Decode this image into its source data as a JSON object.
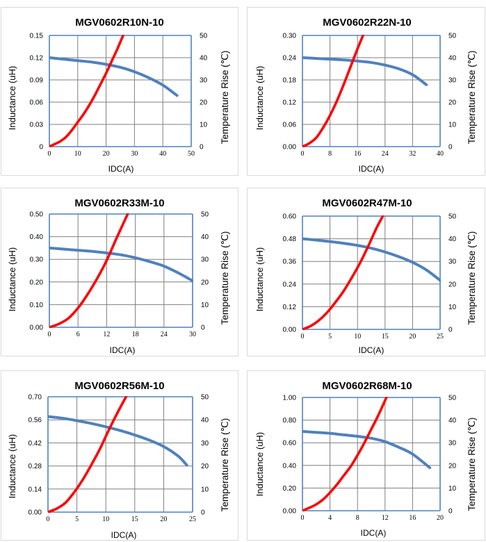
{
  "colors": {
    "inductance": "#4f81bd",
    "temperature": "#ff0000",
    "grid": "#7f7f7f",
    "axis": "#4f81bd",
    "panel_border": "#d9d9d9"
  },
  "common": {
    "xlabel": "IDC(A)",
    "ylabel_left": "Inductance (uH)",
    "ylabel_right": "Temperature Rise (℃)"
  },
  "chart_data": [
    {
      "type": "line",
      "title": "MGV0602R10N-10",
      "xlabel": "IDC(A)",
      "ylabel": "Inductance (uH)",
      "ylabel_right": "Temperature Rise (℃)",
      "xlim": [
        0,
        50
      ],
      "ylim": [
        0,
        0.15
      ],
      "ylim_right": [
        0,
        50
      ],
      "x_ticks": [
        "0",
        "10",
        "20",
        "30",
        "40",
        "50"
      ],
      "y_ticks": [
        "0",
        "0.03",
        "0.06",
        "0.09",
        "0.12",
        "0.15"
      ],
      "y_ticks_right": [
        "0",
        "10",
        "20",
        "30",
        "40",
        "50"
      ],
      "series": [
        {
          "name": "Inductance",
          "axis": "left",
          "x": [
            0,
            5,
            10,
            15,
            20,
            25,
            30,
            35,
            40,
            45
          ],
          "values": [
            0.12,
            0.118,
            0.116,
            0.114,
            0.111,
            0.107,
            0.101,
            0.093,
            0.083,
            0.069
          ]
        },
        {
          "name": "Temperature Rise",
          "axis": "right",
          "x": [
            0,
            2,
            4,
            6,
            8,
            10,
            12,
            14,
            16,
            18,
            20,
            22,
            24,
            26
          ],
          "values": [
            0,
            1.2,
            2.5,
            4.5,
            7.5,
            11,
            14.5,
            18.5,
            23,
            28,
            33,
            38.5,
            44,
            50
          ]
        }
      ]
    },
    {
      "type": "line",
      "title": "MGV0602R22N-10",
      "xlabel": "IDC(A)",
      "ylabel": "Inductance (uH)",
      "ylabel_right": "Temperature Rise (℃)",
      "xlim": [
        0,
        40
      ],
      "ylim": [
        0,
        0.3
      ],
      "ylim_right": [
        0,
        50
      ],
      "x_ticks": [
        "0",
        "8",
        "16",
        "24",
        "32",
        "40"
      ],
      "y_ticks": [
        "0.00",
        "0.06",
        "0.12",
        "0.18",
        "0.24",
        "0.30"
      ],
      "y_ticks_right": [
        "0",
        "10",
        "20",
        "30",
        "40",
        "50"
      ],
      "series": [
        {
          "name": "Inductance",
          "axis": "left",
          "x": [
            0,
            4,
            8,
            12,
            16,
            20,
            24,
            28,
            32,
            36
          ],
          "values": [
            0.24,
            0.238,
            0.236,
            0.234,
            0.231,
            0.227,
            0.22,
            0.21,
            0.194,
            0.167
          ]
        },
        {
          "name": "Temperature Rise",
          "axis": "right",
          "x": [
            0,
            2,
            4,
            6,
            8,
            10,
            12,
            14,
            16,
            17.6
          ],
          "values": [
            0,
            1.5,
            4,
            8.5,
            14,
            20.5,
            28,
            36,
            44,
            50
          ]
        }
      ]
    },
    {
      "type": "line",
      "title": "MGV0602R33M-10",
      "xlabel": "IDC(A)",
      "ylabel": "Inductance (uH)",
      "ylabel_right": "Temperature Rise (℃)",
      "xlim": [
        0,
        30
      ],
      "ylim": [
        0,
        0.5
      ],
      "ylim_right": [
        0,
        50
      ],
      "x_ticks": [
        "0",
        "6",
        "12",
        "18",
        "24",
        "30"
      ],
      "y_ticks": [
        "0.00",
        "0.10",
        "0.20",
        "0.30",
        "0.40",
        "0.50"
      ],
      "y_ticks_right": [
        "0",
        "10",
        "20",
        "30",
        "40",
        "50"
      ],
      "series": [
        {
          "name": "Inductance",
          "axis": "left",
          "x": [
            0,
            3,
            6,
            9,
            12,
            15,
            18,
            21,
            24,
            27,
            30
          ],
          "values": [
            0.35,
            0.345,
            0.34,
            0.335,
            0.328,
            0.32,
            0.307,
            0.29,
            0.27,
            0.24,
            0.205
          ]
        },
        {
          "name": "Temperature Rise",
          "axis": "right",
          "x": [
            0,
            2,
            4,
            6,
            8,
            10,
            12,
            14,
            16.4
          ],
          "values": [
            0,
            1.5,
            4,
            8.5,
            14.5,
            21.5,
            29.5,
            39,
            50
          ]
        }
      ]
    },
    {
      "type": "line",
      "title": "MGV0602R47M-10",
      "xlabel": "IDC(A)",
      "ylabel": "Inductance (uH)",
      "ylabel_right": "Temperature Rise (℃)",
      "xlim": [
        0,
        25
      ],
      "ylim": [
        0,
        0.6
      ],
      "ylim_right": [
        0,
        50
      ],
      "x_ticks": [
        "0",
        "5",
        "10",
        "15",
        "20",
        "25"
      ],
      "y_ticks": [
        "0.00",
        "0.12",
        "0.24",
        "0.36",
        "0.48",
        "0.60"
      ],
      "y_ticks_right": [
        "0",
        "10",
        "20",
        "30",
        "40",
        "50"
      ],
      "series": [
        {
          "name": "Inductance",
          "axis": "left",
          "x": [
            0,
            2.5,
            5,
            7.5,
            10,
            12.5,
            15,
            17.5,
            20,
            22.5,
            25
          ],
          "values": [
            0.48,
            0.473,
            0.465,
            0.456,
            0.445,
            0.43,
            0.41,
            0.385,
            0.355,
            0.315,
            0.26
          ]
        },
        {
          "name": "Temperature Rise",
          "axis": "right",
          "x": [
            0,
            1.5,
            3,
            4.5,
            6,
            7.5,
            9,
            10.5,
            12,
            13.5,
            14.6
          ],
          "values": [
            0,
            1.5,
            4,
            7.5,
            12,
            17,
            23,
            29.5,
            37,
            45,
            50
          ]
        }
      ]
    },
    {
      "type": "line",
      "title": "MGV0602R56M-10",
      "xlabel": "IDC(A)",
      "ylabel": "Inductance (uH)",
      "ylabel_right": "Temperature Rise (℃)",
      "xlim": [
        0,
        25
      ],
      "ylim": [
        0,
        0.7
      ],
      "ylim_right": [
        0,
        50
      ],
      "x_ticks": [
        "0",
        "5",
        "10",
        "15",
        "20",
        "25"
      ],
      "y_ticks": [
        "0.00",
        "0.14",
        "0.28",
        "0.42",
        "0.56",
        "0.70"
      ],
      "y_ticks_right": [
        "0",
        "10",
        "20",
        "30",
        "40",
        "50"
      ],
      "series": [
        {
          "name": "Inductance",
          "axis": "left",
          "x": [
            0,
            2.5,
            5,
            7.5,
            10,
            12.5,
            15,
            17.5,
            20,
            22.5,
            24
          ],
          "values": [
            0.58,
            0.57,
            0.555,
            0.538,
            0.518,
            0.495,
            0.468,
            0.437,
            0.398,
            0.34,
            0.285
          ]
        },
        {
          "name": "Temperature Rise",
          "axis": "right",
          "x": [
            0,
            1.5,
            3,
            4.5,
            6,
            7.5,
            9,
            10.5,
            12,
            13.5
          ],
          "values": [
            0,
            1.5,
            4,
            8.5,
            14,
            20.5,
            27.5,
            35.5,
            43,
            50
          ]
        }
      ]
    },
    {
      "type": "line",
      "title": "MGV0602R68M-10",
      "xlabel": "IDC(A)",
      "ylabel": "Inductance (uH)",
      "ylabel_right": "Temperature Rise (℃)",
      "xlim": [
        0,
        20
      ],
      "ylim": [
        0,
        1.0
      ],
      "ylim_right": [
        0,
        50
      ],
      "x_ticks": [
        "0",
        "4",
        "8",
        "12",
        "16",
        "20"
      ],
      "y_ticks": [
        "0.00",
        "0.20",
        "0.40",
        "0.60",
        "0.80",
        "1.00"
      ],
      "y_ticks_right": [
        "0",
        "10",
        "20",
        "30",
        "40",
        "50"
      ],
      "series": [
        {
          "name": "Inductance",
          "axis": "left",
          "x": [
            0,
            2,
            4,
            6,
            8,
            10,
            12,
            14,
            16,
            18.5
          ],
          "values": [
            0.7,
            0.692,
            0.683,
            0.67,
            0.657,
            0.64,
            0.61,
            0.56,
            0.5,
            0.38
          ]
        },
        {
          "name": "Temperature Rise",
          "axis": "right",
          "x": [
            0,
            1,
            2,
            3,
            4,
            5,
            6,
            7,
            8,
            9,
            10,
            11,
            12.2
          ],
          "values": [
            0,
            1.3,
            2.8,
            5,
            8,
            11.5,
            15.5,
            19.5,
            24.5,
            30,
            36,
            42,
            50
          ]
        }
      ]
    }
  ]
}
